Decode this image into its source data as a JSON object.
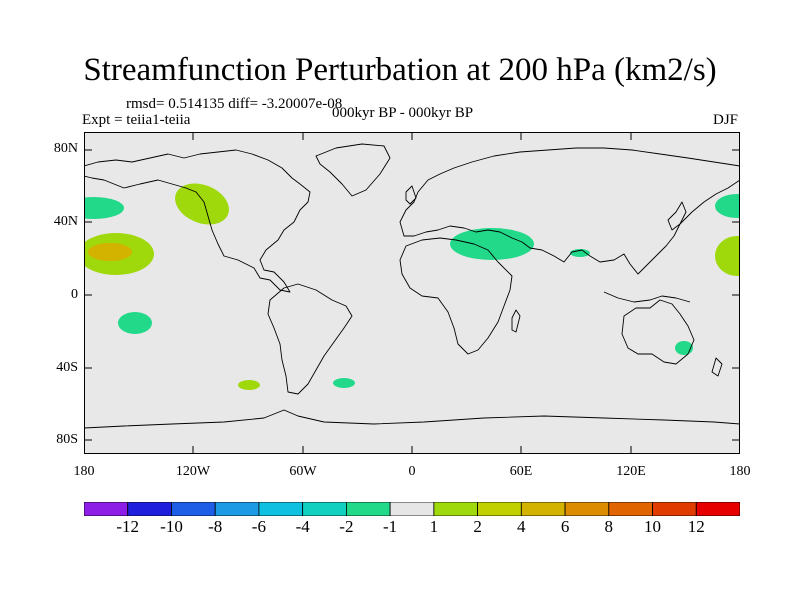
{
  "title": "Streamfunction Perturbation at 200 hPa (km2/s)",
  "stats": "rmsd= 0.514135 diff= -3.20007e-08",
  "experiment": "Expt = teiia1-teiia",
  "period": "000kyr BP - 000kyr BP",
  "season": "DJF",
  "map": {
    "projection": "cylindrical equidistant",
    "lon_range": [
      -180,
      180
    ],
    "lat_range": [
      -90,
      90
    ],
    "background_color": "#e8e8e8",
    "y_tick_labels": [
      "80N",
      "40N",
      "0",
      "40S",
      "80S"
    ],
    "x_tick_labels": [
      "180",
      "120W",
      "60W",
      "0",
      "60E",
      "120E",
      "180"
    ],
    "anomaly_regions": [
      {
        "lon": -173,
        "lat": 47,
        "level": -1,
        "color": "#22d98a"
      },
      {
        "lon": -163,
        "lat": 23,
        "level": 2,
        "color": "#9fd80b"
      },
      {
        "lon": -163,
        "lat": 23,
        "level": 4,
        "color": "#d4b200"
      },
      {
        "lon": -114,
        "lat": 50,
        "level": 2,
        "color": "#9fd80b"
      },
      {
        "lon": -138,
        "lat": -15,
        "level": -1,
        "color": "#22d98a"
      },
      {
        "lon": -88,
        "lat": -51,
        "level": 2,
        "color": "#9fd80b"
      },
      {
        "lon": -37,
        "lat": -49,
        "level": -1,
        "color": "#22d98a"
      },
      {
        "lon": 47,
        "lat": 27,
        "level": -1,
        "color": "#22d98a"
      },
      {
        "lon": 92,
        "lat": 23,
        "level": -1,
        "color": "#22d98a"
      },
      {
        "lon": 153,
        "lat": -30,
        "level": -1,
        "color": "#22d98a"
      },
      {
        "lon": 175,
        "lat": 48,
        "level": -1,
        "color": "#22d98a"
      },
      {
        "lon": 175,
        "lat": 22,
        "level": 2,
        "color": "#9fd80b"
      }
    ]
  },
  "colorbar": {
    "colors": [
      "#8c1ee6",
      "#2020dc",
      "#1e5ee6",
      "#1c9ae4",
      "#10c0e0",
      "#12d0c0",
      "#22d98a",
      "#e6e6e6",
      "#9fd80b",
      "#c0d000",
      "#d4b200",
      "#dc8c00",
      "#e06400",
      "#e03c00",
      "#e60000"
    ],
    "labels": [
      "-12",
      "-10",
      "-8",
      "-6",
      "-4",
      "-2",
      "-1",
      "1",
      "2",
      "4",
      "6",
      "8",
      "10",
      "12"
    ]
  }
}
